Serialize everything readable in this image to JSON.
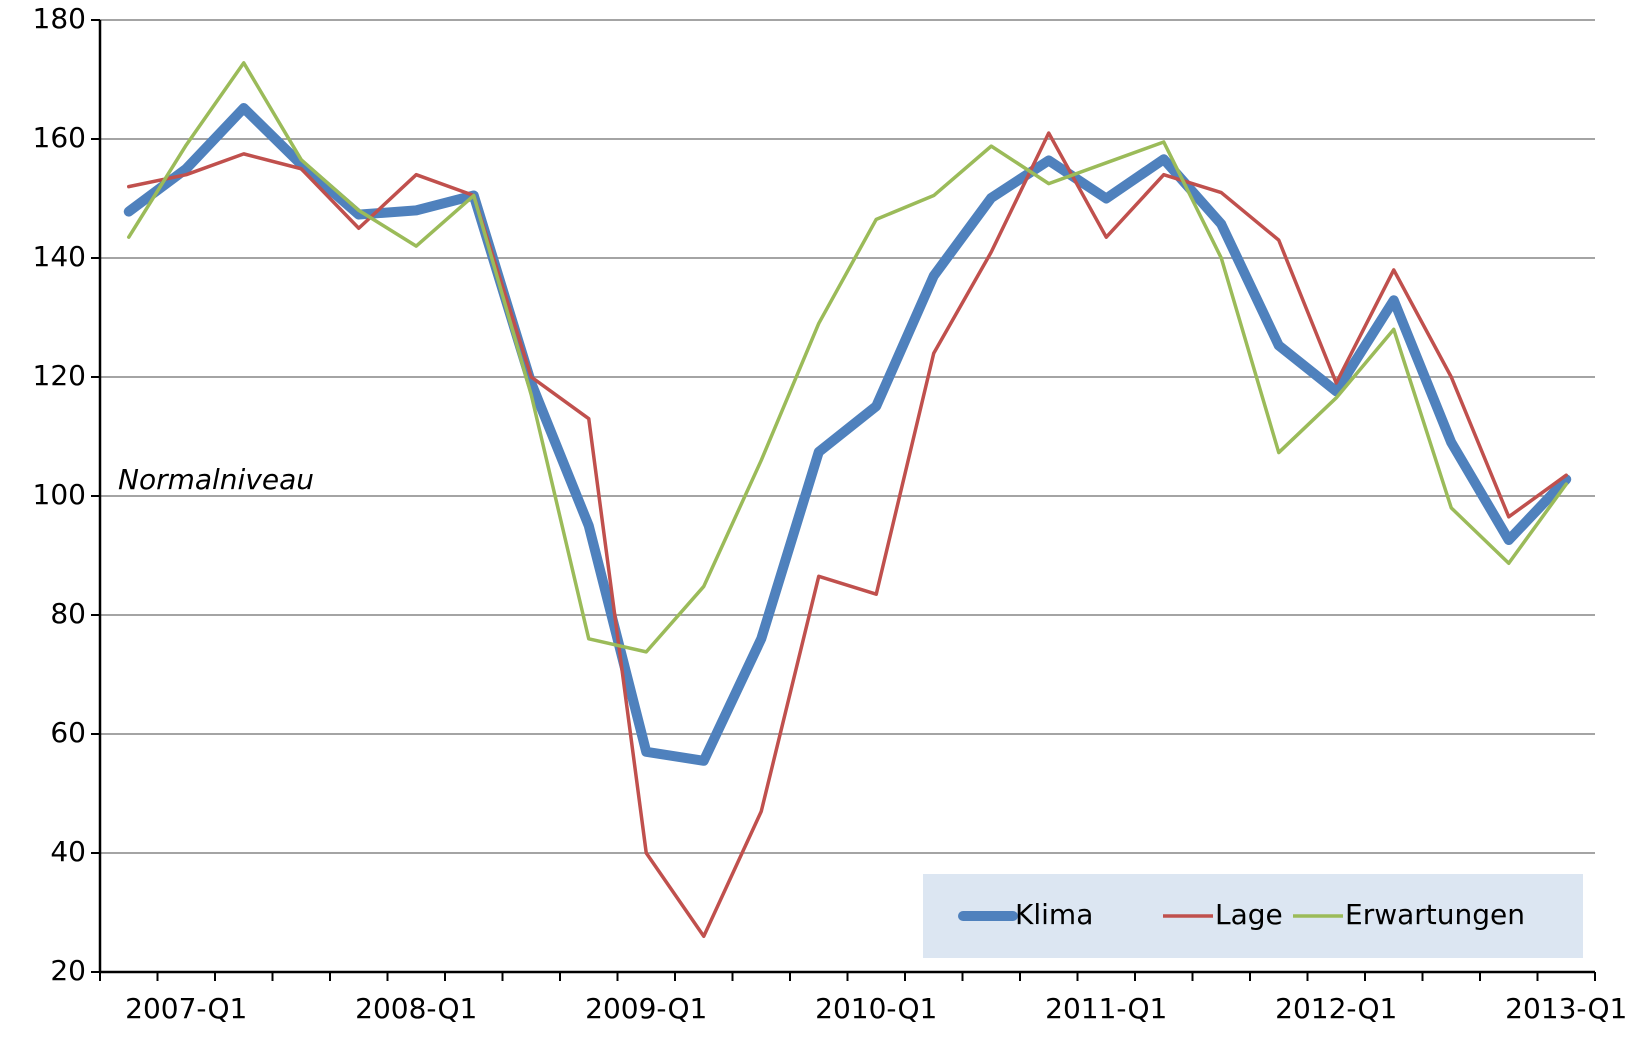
{
  "chart_data": {
    "type": "line",
    "annotation": "Normalniveau",
    "categories": [
      null,
      "2007-Q1",
      null,
      null,
      null,
      "2008-Q1",
      null,
      null,
      null,
      "2009-Q1",
      null,
      null,
      null,
      "2010-Q1",
      null,
      null,
      null,
      "2011-Q1",
      null,
      null,
      null,
      "2012-Q1",
      null,
      null,
      null,
      "2013-Q1"
    ],
    "series": [
      {
        "name": "Klima",
        "color": "#4f81bd",
        "values": [
          147.8,
          155,
          165.2,
          155.7,
          147.3,
          148,
          150.5,
          119,
          95,
          57,
          55.5,
          76,
          107.4,
          115.1,
          137,
          150.1,
          156.4,
          150,
          156.6,
          145.7,
          125.3,
          117.6,
          132.9,
          109,
          92.6,
          102.8
        ]
      },
      {
        "name": "Lage",
        "color": "#c0504d",
        "values": [
          152,
          154,
          157.5,
          155,
          145,
          154,
          150.5,
          120,
          113,
          40,
          26,
          47,
          86.5,
          83.5,
          124,
          141,
          161,
          143.5,
          154,
          151,
          143,
          119,
          138,
          120,
          96.5,
          103.5
        ]
      },
      {
        "name": "Erwartungen",
        "color": "#9bbb59",
        "values": [
          143.5,
          159,
          172.8,
          156.5,
          148,
          142,
          150.5,
          117,
          76,
          73.8,
          84.8,
          106,
          129,
          146.5,
          150.5,
          158.8,
          152.5,
          156,
          159.5,
          140,
          107.3,
          116.5,
          128,
          98,
          88.7,
          102
        ]
      }
    ],
    "ylim": [
      20,
      180
    ],
    "yticks": [
      20,
      40,
      60,
      80,
      100,
      120,
      140,
      160,
      180
    ],
    "grid": true,
    "legend": "lower right"
  }
}
